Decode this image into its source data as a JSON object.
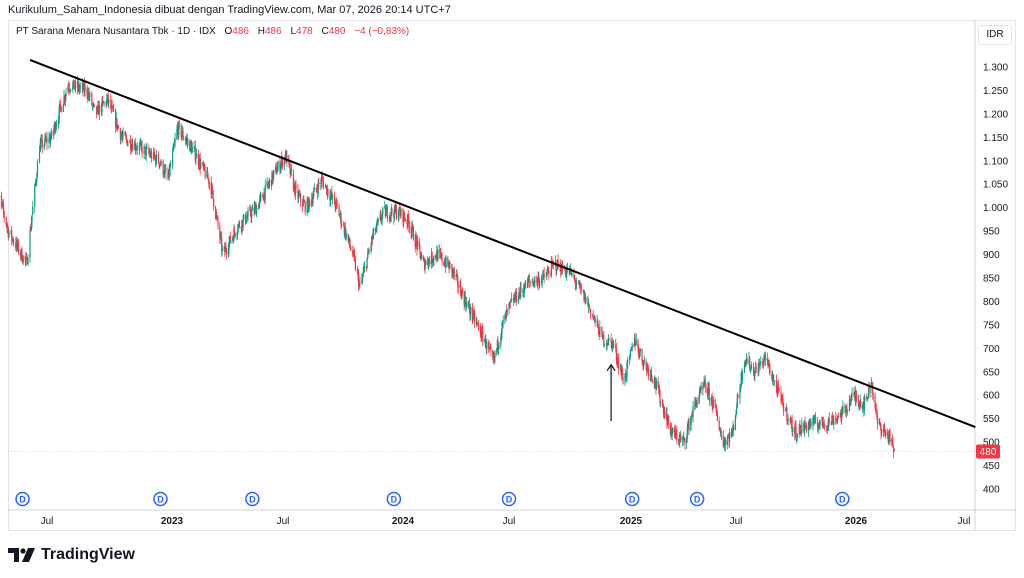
{
  "header": {
    "credit": "Kurikulum_Saham_Indonesia dibuat dengan TradingView.com, Mar 07, 2026 20:14 UTC+7",
    "symbol": "PT Sarana Menara Nusantara Tbk · 1D · IDX",
    "o_label": "O",
    "o_value": "486",
    "h_label": "H",
    "h_value": "486",
    "l_label": "L",
    "l_value": "478",
    "c_label": "C",
    "c_value": "480",
    "change": "−4 (−0,83%)"
  },
  "currency": "IDR",
  "last_price_label": "480",
  "logo_text": "TradingView",
  "colors": {
    "up": "#089981",
    "down": "#f23645",
    "trendline": "#000000",
    "dividend": "#2962ff",
    "last_price": "#f23645"
  },
  "chart_data": {
    "type": "candlestick",
    "title": "PT Sarana Menara Nusantara Tbk · 1D · IDX",
    "ylabel": "IDR",
    "ylim": [
      400,
      1300
    ],
    "yticks": [
      "1.300",
      "1.250",
      "1.200",
      "1.150",
      "1.100",
      "1.050",
      "1.000",
      "950",
      "900",
      "850",
      "800",
      "750",
      "700",
      "650",
      "600",
      "550",
      "500",
      "450",
      "400"
    ],
    "ytick_values": [
      1300,
      1250,
      1200,
      1150,
      1100,
      1050,
      1000,
      950,
      900,
      850,
      800,
      750,
      700,
      650,
      600,
      550,
      500,
      450,
      400
    ],
    "xticks": [
      {
        "label": "Jul",
        "date": "2022-07-01"
      },
      {
        "label": "2023",
        "date": "2023-01-01"
      },
      {
        "label": "Jul",
        "date": "2023-07-01"
      },
      {
        "label": "2024",
        "date": "2024-01-01"
      },
      {
        "label": "Jul",
        "date": "2024-07-01"
      },
      {
        "label": "2025",
        "date": "2025-01-01"
      },
      {
        "label": "Jul",
        "date": "2025-07-01"
      },
      {
        "label": "2026",
        "date": "2026-01-01"
      },
      {
        "label": "Jul",
        "date": "2026-07-01"
      }
    ],
    "grid": false,
    "approx_close_path": [
      [
        "2022-04-15",
        1060
      ],
      [
        "2022-05-05",
        950
      ],
      [
        "2022-06-01",
        880
      ],
      [
        "2022-06-20",
        1130
      ],
      [
        "2022-07-07",
        1150
      ],
      [
        "2022-08-01",
        1262
      ],
      [
        "2022-08-29",
        1250
      ],
      [
        "2022-09-10",
        1200
      ],
      [
        "2022-09-28",
        1230
      ],
      [
        "2022-10-19",
        1150
      ],
      [
        "2022-11-12",
        1130
      ],
      [
        "2022-12-13",
        1100
      ],
      [
        "2022-12-26",
        1060
      ],
      [
        "2023-01-10",
        1170
      ],
      [
        "2023-02-06",
        1120
      ],
      [
        "2023-03-05",
        1050
      ],
      [
        "2023-03-25",
        900
      ],
      [
        "2023-04-18",
        960
      ],
      [
        "2023-05-19",
        1000
      ],
      [
        "2023-06-20",
        1080
      ],
      [
        "2023-07-05",
        1110
      ],
      [
        "2023-07-21",
        1030
      ],
      [
        "2023-08-06",
        1000
      ],
      [
        "2023-08-29",
        1060
      ],
      [
        "2023-09-22",
        1000
      ],
      [
        "2023-10-16",
        900
      ],
      [
        "2023-10-27",
        830
      ],
      [
        "2023-11-16",
        940
      ],
      [
        "2023-12-02",
        990
      ],
      [
        "2023-12-26",
        990
      ],
      [
        "2024-01-11",
        970
      ],
      [
        "2024-02-05",
        880
      ],
      [
        "2024-02-28",
        900
      ],
      [
        "2024-03-24",
        870
      ],
      [
        "2024-04-17",
        800
      ],
      [
        "2024-05-19",
        720
      ],
      [
        "2024-06-04",
        670
      ],
      [
        "2024-06-20",
        750
      ],
      [
        "2024-07-06",
        800
      ],
      [
        "2024-07-30",
        840
      ],
      [
        "2024-08-23",
        850
      ],
      [
        "2024-09-08",
        880
      ],
      [
        "2024-10-02",
        860
      ],
      [
        "2024-10-26",
        800
      ],
      [
        "2024-11-19",
        720
      ],
      [
        "2024-12-05",
        710
      ],
      [
        "2024-12-21",
        630
      ],
      [
        "2025-01-07",
        720
      ],
      [
        "2025-01-23",
        670
      ],
      [
        "2025-02-08",
        640
      ],
      [
        "2025-02-24",
        580
      ],
      [
        "2025-03-12",
        520
      ],
      [
        "2025-04-02",
        500
      ],
      [
        "2025-04-21",
        580
      ],
      [
        "2025-05-08",
        620
      ],
      [
        "2025-05-24",
        580
      ],
      [
        "2025-06-09",
        500
      ],
      [
        "2025-06-25",
        520
      ],
      [
        "2025-07-14",
        680
      ],
      [
        "2025-07-30",
        650
      ],
      [
        "2025-08-15",
        680
      ],
      [
        "2025-09-05",
        600
      ],
      [
        "2025-09-29",
        520
      ],
      [
        "2025-10-23",
        540
      ],
      [
        "2025-11-16",
        540
      ],
      [
        "2025-12-11",
        560
      ],
      [
        "2025-12-28",
        600
      ],
      [
        "2026-01-15",
        580
      ],
      [
        "2026-01-27",
        630
      ],
      [
        "2026-02-06",
        540
      ],
      [
        "2026-02-26",
        510
      ],
      [
        "2026-03-06",
        480
      ]
    ],
    "last": {
      "open": 486,
      "high": 486,
      "low": 478,
      "close": 480
    },
    "trendline": [
      [
        "2022-06-06",
        1315
      ],
      [
        "2026-07-20",
        532
      ]
    ],
    "arrow": {
      "date": "2024-12-02",
      "from": 545,
      "to": 665
    },
    "dividend_marker_label": "D",
    "dividends": [
      "2022-05-26",
      "2022-12-15",
      "2023-05-12",
      "2023-12-18",
      "2024-07-01",
      "2025-01-03",
      "2025-04-25",
      "2025-12-11"
    ]
  }
}
